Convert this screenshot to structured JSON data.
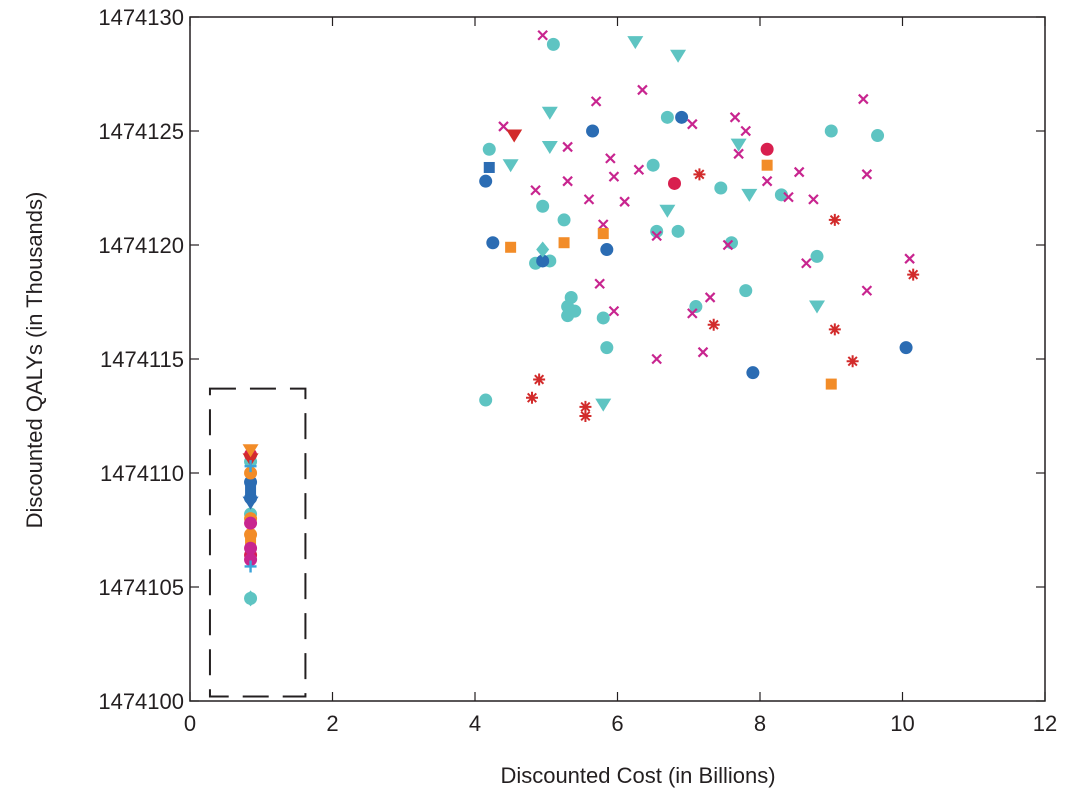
{
  "chart_data": {
    "type": "scatter",
    "xlabel": "Discounted Cost (in Billions)",
    "ylabel": "Discounted QALYs (in Thousands)",
    "xlim": [
      0,
      12
    ],
    "ylim": [
      1474100,
      1474130
    ],
    "x_ticks": [
      "0",
      "2",
      "4",
      "6",
      "8",
      "10",
      "12"
    ],
    "y_ticks": [
      "1474100",
      "1474105",
      "1474110",
      "1474115",
      "1474120",
      "1474125",
      "1474130"
    ],
    "grid": false,
    "legend": "none",
    "highlight_box": {
      "x": [
        0.28,
        1.62
      ],
      "y": [
        1474100.2,
        1474113.7
      ],
      "style": "dashed"
    },
    "series": [
      {
        "marker": "circle",
        "color": "#5ec4c2",
        "points": [
          [
            5.1,
            1474128.8
          ],
          [
            4.2,
            1474124.2
          ],
          [
            6.7,
            1474125.6
          ],
          [
            9.0,
            1474125.0
          ],
          [
            9.65,
            1474124.8
          ],
          [
            6.5,
            1474123.5
          ],
          [
            7.45,
            1474122.5
          ],
          [
            8.3,
            1474122.2
          ],
          [
            4.95,
            1474121.7
          ],
          [
            5.25,
            1474121.1
          ],
          [
            6.85,
            1474120.6
          ],
          [
            6.55,
            1474120.6
          ],
          [
            7.6,
            1474120.1
          ],
          [
            4.85,
            1474119.2
          ],
          [
            5.05,
            1474119.3
          ],
          [
            8.8,
            1474119.5
          ],
          [
            7.8,
            1474118.0
          ],
          [
            5.35,
            1474117.7
          ],
          [
            5.3,
            1474117.3
          ],
          [
            7.1,
            1474117.3
          ],
          [
            5.4,
            1474117.1
          ],
          [
            5.3,
            1474116.9
          ],
          [
            5.8,
            1474116.8
          ],
          [
            5.85,
            1474115.5
          ],
          [
            4.15,
            1474113.2
          ],
          [
            0.85,
            1474104.5
          ],
          [
            0.85,
            1474108.2
          ],
          [
            0.85,
            1474110.5
          ]
        ]
      },
      {
        "marker": "circle",
        "color": "#2b6cb3",
        "points": [
          [
            4.15,
            1474122.8
          ],
          [
            5.65,
            1474125.0
          ],
          [
            6.9,
            1474125.6
          ],
          [
            4.25,
            1474120.1
          ],
          [
            5.85,
            1474119.8
          ],
          [
            4.95,
            1474119.3
          ],
          [
            7.9,
            1474114.4
          ],
          [
            10.05,
            1474115.5
          ],
          [
            0.85,
            1474109.6
          ],
          [
            0.85,
            1474108.9
          ]
        ]
      },
      {
        "marker": "circle",
        "color": "#d81f4e",
        "points": [
          [
            8.1,
            1474124.2
          ],
          [
            6.8,
            1474122.7
          ],
          [
            0.85,
            1474110.8
          ],
          [
            0.85,
            1474106.4
          ]
        ]
      },
      {
        "marker": "x",
        "color": "#c8258f",
        "points": [
          [
            4.95,
            1474129.2
          ],
          [
            5.7,
            1474126.3
          ],
          [
            6.35,
            1474126.8
          ],
          [
            4.4,
            1474125.2
          ],
          [
            7.05,
            1474125.3
          ],
          [
            7.65,
            1474125.6
          ],
          [
            9.45,
            1474126.4
          ],
          [
            5.3,
            1474124.3
          ],
          [
            7.8,
            1474125.0
          ],
          [
            5.9,
            1474123.8
          ],
          [
            6.3,
            1474123.3
          ],
          [
            7.7,
            1474124.0
          ],
          [
            5.95,
            1474123.0
          ],
          [
            5.3,
            1474122.8
          ],
          [
            4.85,
            1474122.4
          ],
          [
            8.1,
            1474122.8
          ],
          [
            8.55,
            1474123.2
          ],
          [
            9.5,
            1474123.1
          ],
          [
            5.6,
            1474122.0
          ],
          [
            6.1,
            1474121.9
          ],
          [
            8.4,
            1474122.1
          ],
          [
            8.75,
            1474122.0
          ],
          [
            5.8,
            1474120.9
          ],
          [
            6.55,
            1474120.4
          ],
          [
            7.55,
            1474120.0
          ],
          [
            8.65,
            1474119.2
          ],
          [
            10.1,
            1474119.4
          ],
          [
            5.75,
            1474118.3
          ],
          [
            9.5,
            1474118.0
          ],
          [
            7.3,
            1474117.7
          ],
          [
            5.95,
            1474117.1
          ],
          [
            7.05,
            1474117.0
          ],
          [
            6.55,
            1474115.0
          ],
          [
            7.2,
            1474115.3
          ]
        ]
      },
      {
        "marker": "asterisk",
        "color": "#d22b2b",
        "points": [
          [
            7.15,
            1474123.1
          ],
          [
            9.05,
            1474121.1
          ],
          [
            10.15,
            1474118.7
          ],
          [
            7.35,
            1474116.5
          ],
          [
            9.05,
            1474116.3
          ],
          [
            9.3,
            1474114.9
          ],
          [
            4.9,
            1474114.1
          ],
          [
            4.8,
            1474113.3
          ],
          [
            5.55,
            1474112.9
          ],
          [
            5.55,
            1474112.5
          ]
        ]
      },
      {
        "marker": "triangle-down",
        "color": "#5ec4c2",
        "points": [
          [
            6.25,
            1474128.9
          ],
          [
            6.85,
            1474128.3
          ],
          [
            5.05,
            1474125.8
          ],
          [
            5.05,
            1474124.3
          ],
          [
            4.5,
            1474123.5
          ],
          [
            7.7,
            1474124.4
          ],
          [
            7.85,
            1474122.2
          ],
          [
            6.7,
            1474121.5
          ],
          [
            8.8,
            1474117.3
          ],
          [
            5.8,
            1474113.0
          ]
        ]
      },
      {
        "marker": "triangle-down",
        "color": "#d22b2b",
        "points": [
          [
            4.55,
            1474124.8
          ],
          [
            0.85,
            1474110.6
          ]
        ]
      },
      {
        "marker": "triangle-down",
        "color": "#f28c28",
        "points": [
          [
            0.85,
            1474111.0
          ]
        ]
      },
      {
        "marker": "triangle-down",
        "color": "#2b6cb3",
        "points": [
          [
            0.85,
            1474108.7
          ]
        ]
      },
      {
        "marker": "square",
        "color": "#f28c28",
        "points": [
          [
            8.1,
            1474123.5
          ],
          [
            4.5,
            1474119.9
          ],
          [
            5.25,
            1474120.1
          ],
          [
            5.8,
            1474120.5
          ],
          [
            9.0,
            1474113.9
          ],
          [
            0.85,
            1474107.0
          ]
        ]
      },
      {
        "marker": "square",
        "color": "#2b6cb3",
        "points": [
          [
            4.2,
            1474123.4
          ],
          [
            0.85,
            1474109.3
          ]
        ]
      },
      {
        "marker": "diamond",
        "color": "#5ec4c2",
        "points": [
          [
            4.95,
            1474119.8
          ],
          [
            0.85,
            1474104.5
          ]
        ]
      },
      {
        "marker": "circle",
        "color": "#f28c28",
        "points": [
          [
            0.85,
            1474110.0
          ],
          [
            0.85,
            1474108.0
          ],
          [
            0.85,
            1474107.3
          ]
        ]
      },
      {
        "marker": "circle",
        "color": "#c8258f",
        "points": [
          [
            0.85,
            1474107.8
          ],
          [
            0.85,
            1474106.7
          ],
          [
            0.85,
            1474106.2
          ]
        ]
      },
      {
        "marker": "plus",
        "color": "#3ba3d9",
        "points": [
          [
            0.85,
            1474110.3
          ],
          [
            0.85,
            1474105.9
          ]
        ]
      }
    ]
  }
}
